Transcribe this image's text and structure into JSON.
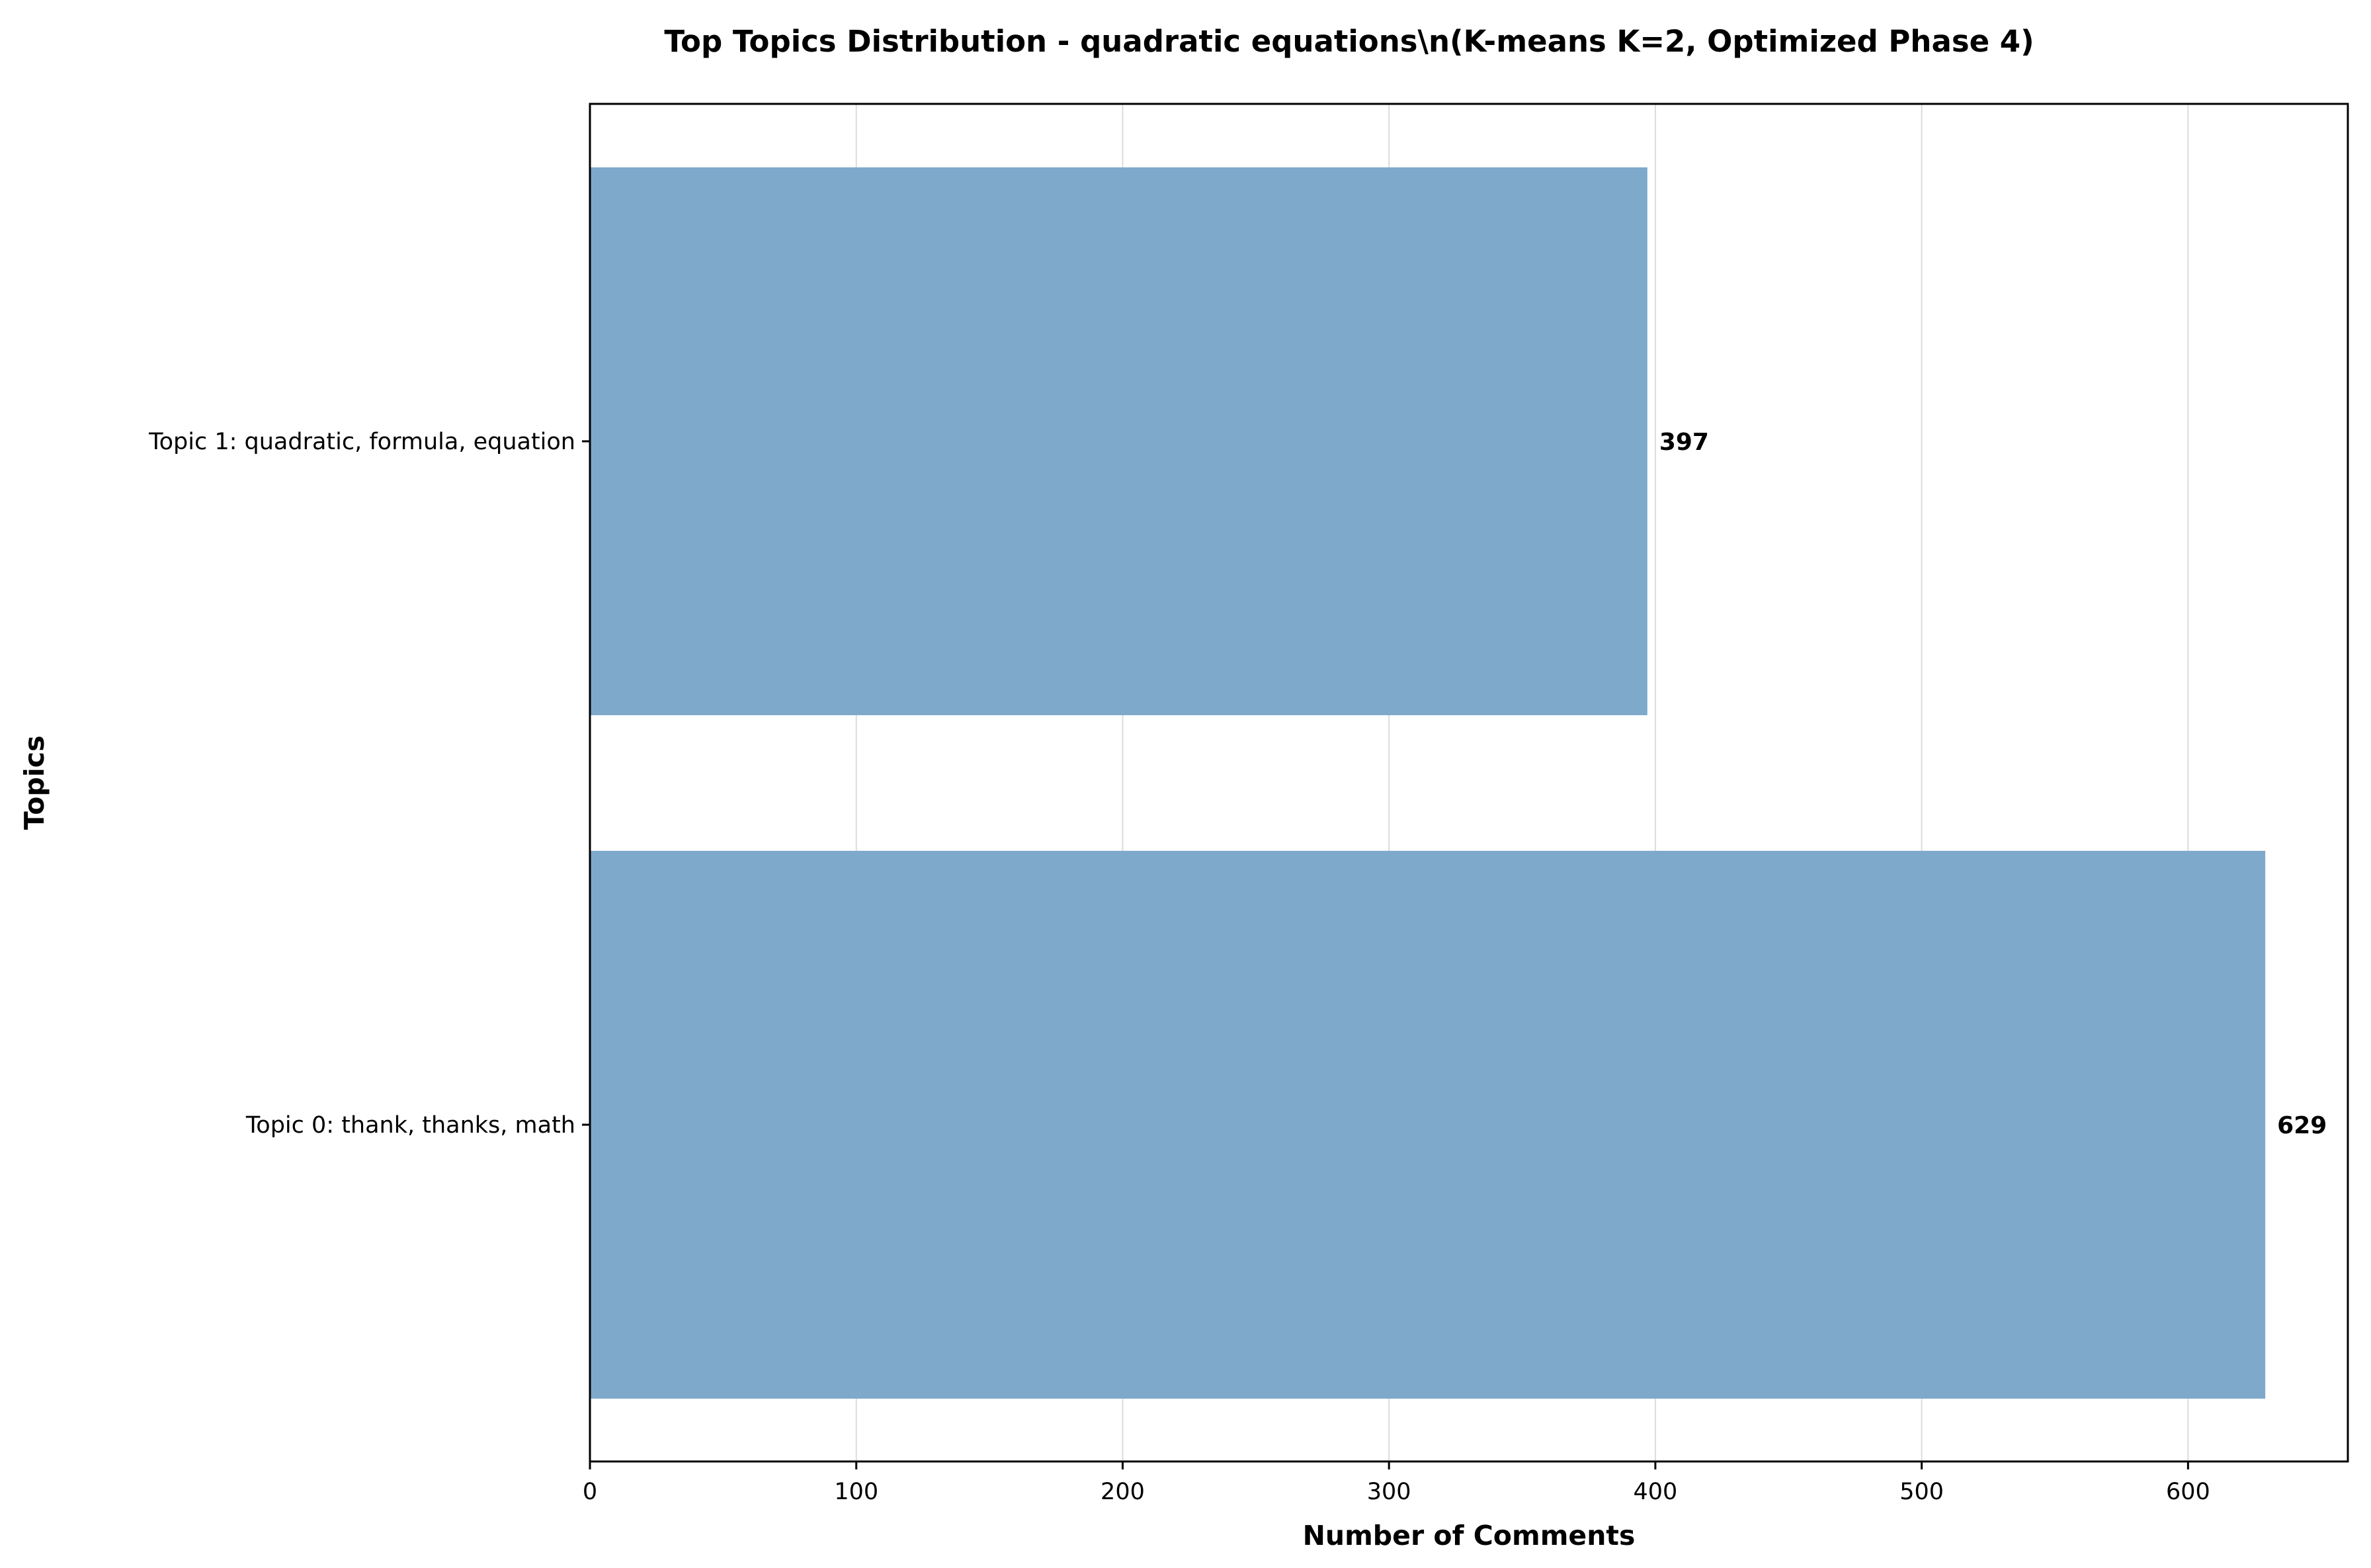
{
  "chart_data": {
    "type": "bar",
    "orientation": "horizontal",
    "title": "Top Topics Distribution - quadratic equations\\n(K-means K=2, Optimized Phase 4)",
    "xlabel": "Number of Comments",
    "ylabel": "Topics",
    "categories": [
      "Topic 0: thank, thanks, math",
      "Topic 1: quadratic, formula, equation"
    ],
    "values": [
      629,
      397
    ],
    "data_labels": [
      "629",
      "397"
    ],
    "xlim": [
      0,
      660
    ],
    "xticks": [
      0,
      100,
      200,
      300,
      400,
      500,
      600
    ],
    "grid": "x",
    "bar_color": "#7ba7ca",
    "legend": "none"
  }
}
